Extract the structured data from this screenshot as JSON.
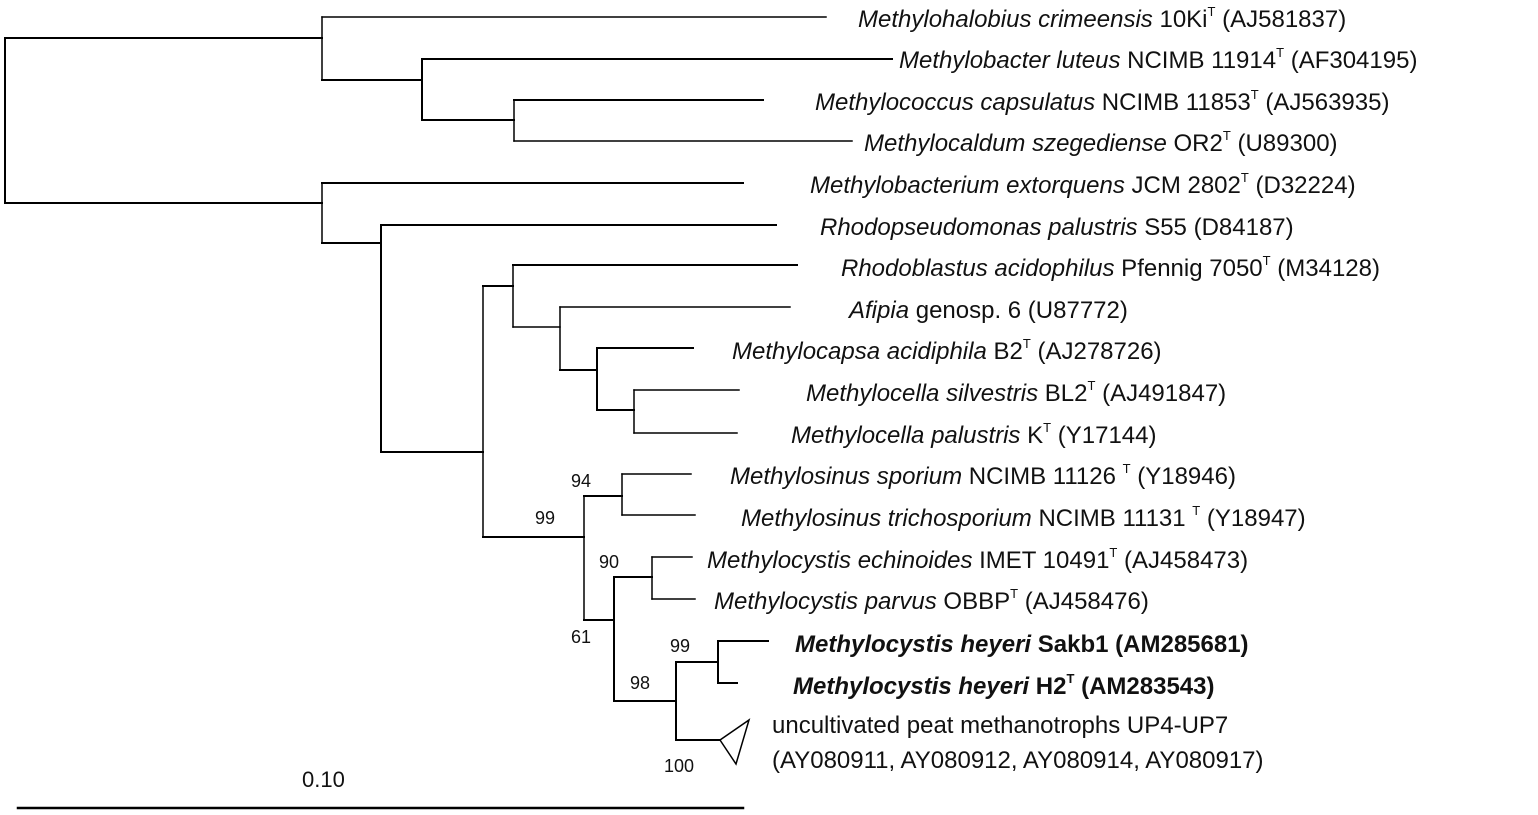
{
  "taxa": {
    "t1": {
      "genus": "Methylohalobius crimeensis",
      "strain": " 10Ki",
      "sup": "T",
      "acc": " (AJ581837)"
    },
    "t2": {
      "genus": "Methylobacter luteus",
      "strain": " NCIMB 11914",
      "sup": "T",
      "acc": " (AF304195)"
    },
    "t3": {
      "genus": "Methylococcus capsulatus",
      "strain": " NCIMB 11853",
      "sup": "T",
      "acc": "  (AJ563935)"
    },
    "t4": {
      "genus": "Methylocaldum szegediense",
      "strain": " OR2",
      "sup": "T",
      "acc": " (U89300)"
    },
    "t5": {
      "genus": "Methylobacterium extorquens",
      "strain": " JCM 2802",
      "sup": "T",
      "acc": " (D32224)"
    },
    "t6": {
      "genus": "Rhodopseudomonas palustris",
      "strain": " S55",
      "sup": "",
      "acc": " (D84187)"
    },
    "t7": {
      "genus": "Rhodoblastus acidophilus",
      "strain": " Pfennig 7050",
      "sup": "T",
      "acc": " (M34128)"
    },
    "t8": {
      "genus": "Afipia",
      "strain": " genosp. 6",
      "sup": "",
      "acc": " (U87772)"
    },
    "t9": {
      "genus": "Methylocapsa acidiphila",
      "strain": " B2",
      "sup": "T",
      "acc": " (AJ278726)"
    },
    "t10": {
      "genus": "Methylocella silvestris",
      "strain": " BL2",
      "sup": "T",
      "acc": " (AJ491847)"
    },
    "t11": {
      "genus": "Methylocella palustris",
      "strain": " K",
      "sup": "T",
      "acc": " (Y17144)"
    },
    "t12": {
      "genus": "Methylosinus sporium",
      "strain": " NCIMB 11126 ",
      "sup": "T",
      "acc": " (Y18946)"
    },
    "t13": {
      "genus": "Methylosinus trichosporium",
      "strain": " NCIMB 11131 ",
      "sup": "T",
      "acc": " (Y18947)"
    },
    "t14": {
      "genus": "Methylocystis echinoides",
      "strain": " IMET 10491",
      "sup": "T",
      "acc": " (AJ458473)"
    },
    "t15": {
      "genus": "Methylocystis parvus",
      "strain": " OBBP",
      "sup": "T",
      "acc": " (AJ458476)"
    },
    "t16": {
      "genus": "Methylocystis heyeri",
      "strain": " Sakb1 (AM285681)",
      "sup": "",
      "acc": ""
    },
    "t17": {
      "genus": "Methylocystis heyeri",
      "strain": " H2",
      "sup": "T",
      "acc": " (AM283543)"
    },
    "t18": {
      "line1": "uncultivated peat methanotrophs UP4-UP7",
      "line2": "(AY080911, AY080912, AY080914, AY080917)"
    }
  },
  "bootstrap": {
    "n94": "94",
    "n99a": "99",
    "n90": "90",
    "n61": "61",
    "n99b": "99",
    "n98": "98",
    "n100": "100"
  },
  "scale_bar": {
    "label": "0.10"
  }
}
